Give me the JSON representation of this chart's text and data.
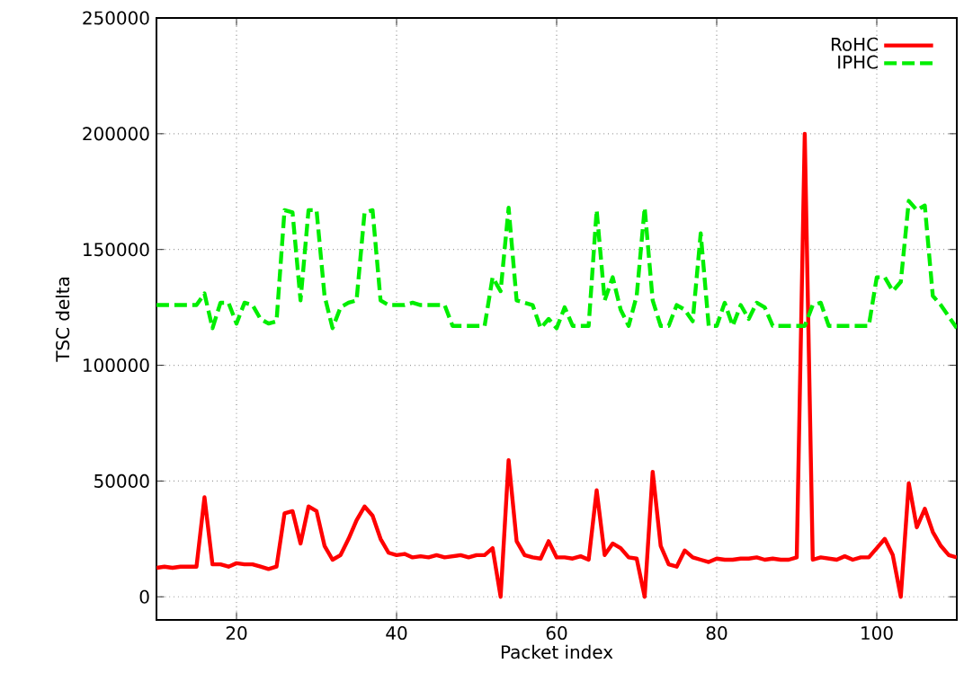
{
  "chart_data": {
    "type": "line",
    "xlabel": "Packet index",
    "ylabel": "TSC delta",
    "x": [
      10,
      11,
      12,
      13,
      14,
      15,
      16,
      17,
      18,
      19,
      20,
      21,
      22,
      23,
      24,
      25,
      26,
      27,
      28,
      29,
      30,
      31,
      32,
      33,
      34,
      35,
      36,
      37,
      38,
      39,
      40,
      41,
      42,
      43,
      44,
      45,
      46,
      47,
      48,
      49,
      50,
      51,
      52,
      53,
      54,
      55,
      56,
      57,
      58,
      59,
      60,
      61,
      62,
      63,
      64,
      65,
      66,
      67,
      68,
      69,
      70,
      71,
      72,
      73,
      74,
      75,
      76,
      77,
      78,
      79,
      80,
      81,
      82,
      83,
      84,
      85,
      86,
      87,
      88,
      89,
      90,
      91,
      92,
      93,
      94,
      95,
      96,
      97,
      98,
      99,
      100,
      101,
      102,
      103,
      104,
      105,
      106,
      107,
      108,
      109,
      110
    ],
    "series": [
      {
        "name": "RoHC",
        "color": "#ff0000",
        "line_style": "solid",
        "values": [
          12500,
          13000,
          12500,
          13000,
          13000,
          13000,
          43000,
          14000,
          14000,
          13000,
          14500,
          14000,
          14000,
          13000,
          12000,
          13000,
          36000,
          37000,
          23000,
          39000,
          37000,
          22000,
          16000,
          18000,
          25000,
          33000,
          39000,
          35000,
          25000,
          19000,
          18000,
          18500,
          17000,
          17500,
          17000,
          18000,
          17000,
          17500,
          18000,
          17000,
          18000,
          18000,
          21000,
          0,
          59000,
          24000,
          18000,
          17000,
          16500,
          24000,
          17000,
          17000,
          16500,
          17500,
          16000,
          46000,
          18000,
          23000,
          21000,
          17000,
          16500,
          0,
          54000,
          22000,
          14000,
          13000,
          20000,
          17000,
          16000,
          15000,
          16500,
          16000,
          16000,
          16500,
          16500,
          17000,
          16000,
          16500,
          16000,
          16000,
          17000,
          200000,
          16000,
          17000,
          16500,
          16000,
          17500,
          16000,
          17000,
          17000,
          21000,
          25000,
          18000,
          0,
          49000,
          30000,
          38000,
          28000,
          22000,
          18000,
          17000
        ]
      },
      {
        "name": "IPHC",
        "color": "#00ee00",
        "line_style": "dashed",
        "values": [
          126000,
          126000,
          126000,
          126000,
          126000,
          126000,
          131000,
          116000,
          127000,
          127000,
          118000,
          127000,
          126000,
          120000,
          118000,
          119000,
          167000,
          166000,
          128000,
          167000,
          167000,
          130000,
          116000,
          125000,
          127000,
          128000,
          166000,
          167000,
          128000,
          126000,
          126000,
          126000,
          127000,
          126000,
          126000,
          126000,
          126000,
          117000,
          117000,
          117000,
          117000,
          117000,
          138000,
          132000,
          168000,
          128000,
          127000,
          126000,
          116000,
          120000,
          116000,
          125000,
          117000,
          117000,
          117000,
          167000,
          128000,
          138000,
          124000,
          117000,
          130000,
          168000,
          128000,
          117000,
          117000,
          126000,
          124000,
          119000,
          157000,
          117000,
          117000,
          127000,
          117000,
          126000,
          120000,
          127000,
          125000,
          117000,
          117000,
          117000,
          117000,
          117000,
          126000,
          127000,
          117000,
          117000,
          117000,
          117000,
          117000,
          117000,
          138000,
          138000,
          132000,
          136000,
          171000,
          167000,
          169000,
          130000,
          126000,
          121000,
          116000
        ]
      }
    ],
    "xlim": [
      10,
      110
    ],
    "ylim": [
      -10000,
      250000
    ],
    "xticks": [
      20,
      40,
      60,
      80,
      100
    ],
    "yticks": [
      0,
      50000,
      100000,
      150000,
      200000,
      250000
    ],
    "grid": true,
    "legend": "top right",
    "marker": "none"
  }
}
